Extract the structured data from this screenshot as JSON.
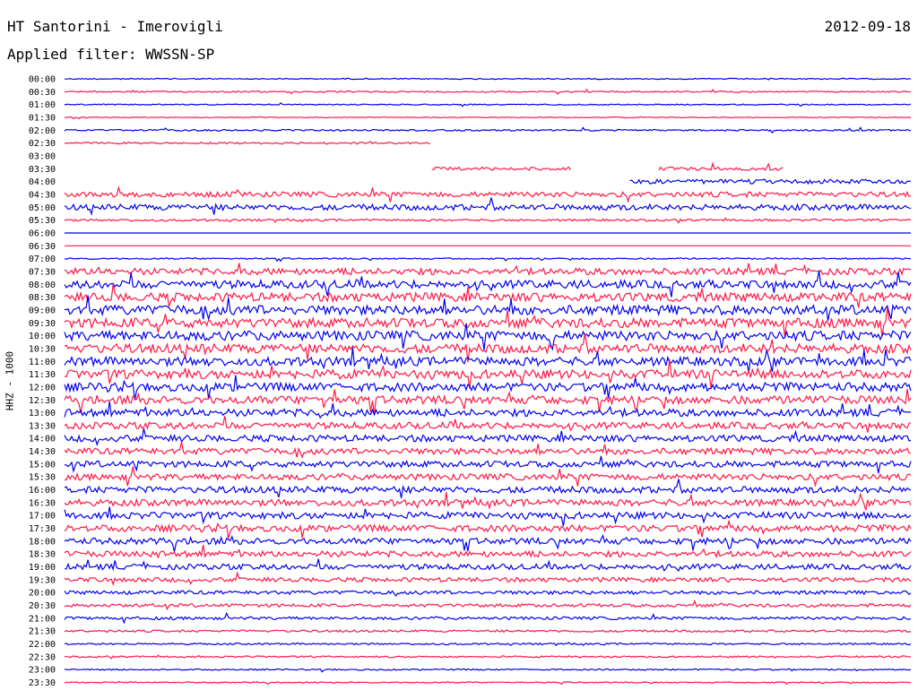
{
  "header": {
    "station": "HT Santorini - Imerovigli",
    "date": "2012-09-18",
    "filter_label": "Applied filter:",
    "filter_value": "WWSSN-SP"
  },
  "colors": {
    "odd_trace": "#0000ee",
    "even_trace": "#ff1744",
    "background": "#ffffff"
  },
  "chart_data": {
    "type": "line",
    "title": "HT Santorini - Imerovigli",
    "subtitle": "Applied filter: WWSSN-SP",
    "ylabel": "HHZ - 1000",
    "xlabel": "",
    "grid": false,
    "legend": "none",
    "time_axis_minutes_per_row": 30,
    "rows": [
      "00:00",
      "00:30",
      "01:00",
      "01:30",
      "02:00",
      "02:30",
      "03:00",
      "03:30",
      "04:00",
      "04:30",
      "05:00",
      "05:30",
      "06:00",
      "06:30",
      "07:00",
      "07:30",
      "08:00",
      "08:30",
      "09:00",
      "09:30",
      "10:00",
      "10:30",
      "11:00",
      "11:30",
      "12:00",
      "12:30",
      "13:00",
      "13:30",
      "14:00",
      "14:30",
      "15:00",
      "15:30",
      "16:00",
      "16:30",
      "17:00",
      "17:30",
      "18:00",
      "18:30",
      "19:00",
      "19:30",
      "20:00",
      "20:30",
      "21:00",
      "21:30",
      "22:00",
      "22:30",
      "23:00",
      "23:30"
    ],
    "noise_level": [
      0.15,
      0.2,
      0.15,
      0.12,
      0.22,
      0.25,
      0.4,
      0.45,
      0.6,
      0.7,
      0.8,
      0.3,
      0.0,
      0.0,
      0.2,
      0.9,
      1.1,
      1.2,
      1.3,
      1.3,
      1.3,
      1.25,
      1.2,
      1.2,
      1.15,
      1.1,
      1.0,
      0.9,
      0.9,
      0.85,
      0.85,
      0.85,
      0.9,
      0.9,
      0.9,
      0.9,
      0.85,
      0.8,
      0.75,
      0.6,
      0.5,
      0.45,
      0.4,
      0.3,
      0.25,
      0.22,
      0.2,
      0.15
    ],
    "gap_minutes": [
      {
        "row": 5,
        "start": 13,
        "end": 30
      },
      {
        "row": 6,
        "start": 0,
        "end": 30
      },
      {
        "row": 7,
        "start": 0,
        "end": 13
      },
      {
        "row": 7,
        "start": 18,
        "end": 21
      },
      {
        "row": 7,
        "start": 25.5,
        "end": 30
      },
      {
        "row": 8,
        "start": 0,
        "end": 20
      }
    ]
  }
}
